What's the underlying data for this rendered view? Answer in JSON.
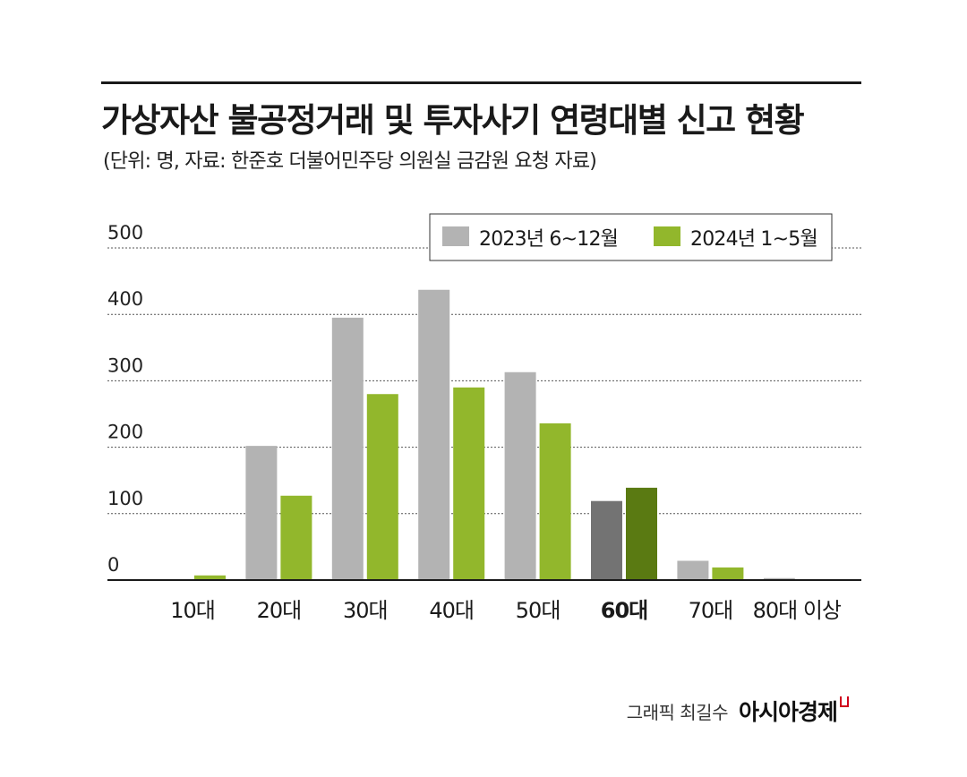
{
  "header": {
    "title": "가상자산 불공정거래 및 투자사기 연령대별 신고 현황",
    "subtitle": "(단위: 명, 자료: 한준호 더불어민주당 의원실 금감원 요청 자료)"
  },
  "credit": {
    "graphic": "그래픽 최길수",
    "brand": "아시아경제",
    "brand_color": "#d0021b"
  },
  "chart_data": {
    "type": "bar",
    "categories": [
      "10대",
      "20대",
      "30대",
      "40대",
      "50대",
      "60대",
      "70대",
      "80대 이상"
    ],
    "highlight_category": "60대",
    "series": [
      {
        "name": "2023년 6~12월",
        "values": [
          1,
          202,
          395,
          437,
          313,
          119,
          29,
          3
        ],
        "color": "#b3b3b3",
        "highlight_color": "#737373"
      },
      {
        "name": "2024년 1~5월",
        "values": [
          7,
          127,
          280,
          290,
          236,
          139,
          19,
          0
        ],
        "color": "#92b72c",
        "highlight_color": "#5a7a12"
      }
    ],
    "ylim": [
      0,
      500
    ],
    "yticks": [
      0,
      100,
      200,
      300,
      400,
      500
    ],
    "grid": "dotted horizontal",
    "legend": "top-right"
  }
}
